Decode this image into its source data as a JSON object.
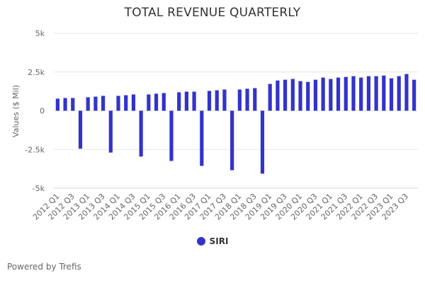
{
  "chart_data": {
    "type": "bar",
    "title": "TOTAL REVENUE QUARTERLY",
    "xlabel": "",
    "ylabel": "Values ($ Mil)",
    "ylim": [
      -5000,
      5000
    ],
    "yticks": [
      5000,
      2500,
      0,
      -2500,
      -5000
    ],
    "ytick_labels": [
      "5k",
      "2.5k",
      "0",
      "-2.5k",
      "-5k"
    ],
    "grid": true,
    "legend_position": "bottom-center",
    "categories": [
      "2012 Q1",
      "2012 Q2",
      "2012 Q3",
      "2012 Q4",
      "2013 Q1",
      "2013 Q2",
      "2013 Q3",
      "2013 Q4",
      "2014 Q1",
      "2014 Q2",
      "2014 Q3",
      "2014 Q4",
      "2015 Q1",
      "2015 Q2",
      "2015 Q3",
      "2015 Q4",
      "2016 Q1",
      "2016 Q2",
      "2016 Q3",
      "2016 Q4",
      "2017 Q1",
      "2017 Q2",
      "2017 Q3",
      "2017 Q4",
      "2018 Q1",
      "2018 Q2",
      "2018 Q3",
      "2018 Q4",
      "2019 Q1",
      "2019 Q2",
      "2019 Q3",
      "2019 Q4",
      "2020 Q1",
      "2020 Q2",
      "2020 Q3",
      "2020 Q4",
      "2021 Q1",
      "2021 Q2",
      "2021 Q3",
      "2021 Q4",
      "2022 Q1",
      "2022 Q2",
      "2022 Q3",
      "2022 Q4",
      "2023 Q1",
      "2023 Q2",
      "2023 Q3",
      "2023 Q4"
    ],
    "visible_tick_labels": [
      "2012 Q1",
      "2012 Q3",
      "2013 Q1",
      "2013 Q3",
      "2014 Q1",
      "2014 Q3",
      "2015 Q1",
      "2015 Q3",
      "2016 Q1",
      "2016 Q3",
      "2017 Q1",
      "2017 Q3",
      "2018 Q1",
      "2018 Q3",
      "2019 Q1",
      "2019 Q3",
      "2020 Q1",
      "2020 Q3",
      "2021 Q1",
      "2021 Q3",
      "2022 Q1",
      "2022 Q3",
      "2023 Q1",
      "2023 Q3"
    ],
    "series": [
      {
        "name": "SIRI",
        "color": "#3333cc",
        "values": [
          780,
          820,
          820,
          -2450,
          870,
          910,
          960,
          -2700,
          960,
          1000,
          1050,
          -2960,
          1050,
          1100,
          1140,
          -3240,
          1190,
          1230,
          1230,
          -3560,
          1280,
          1320,
          1370,
          -3840,
          1370,
          1420,
          1460,
          -4060,
          1730,
          1950,
          2000,
          2050,
          1910,
          1860,
          2000,
          2140,
          2050,
          2140,
          2180,
          2230,
          2140,
          2230,
          2230,
          2270,
          2090,
          2230,
          2370,
          2000
        ]
      }
    ]
  },
  "legend": {
    "items": [
      {
        "label": "SIRI",
        "color": "#3333cc"
      }
    ]
  },
  "footer": {
    "text": "Powered by Trefis"
  }
}
